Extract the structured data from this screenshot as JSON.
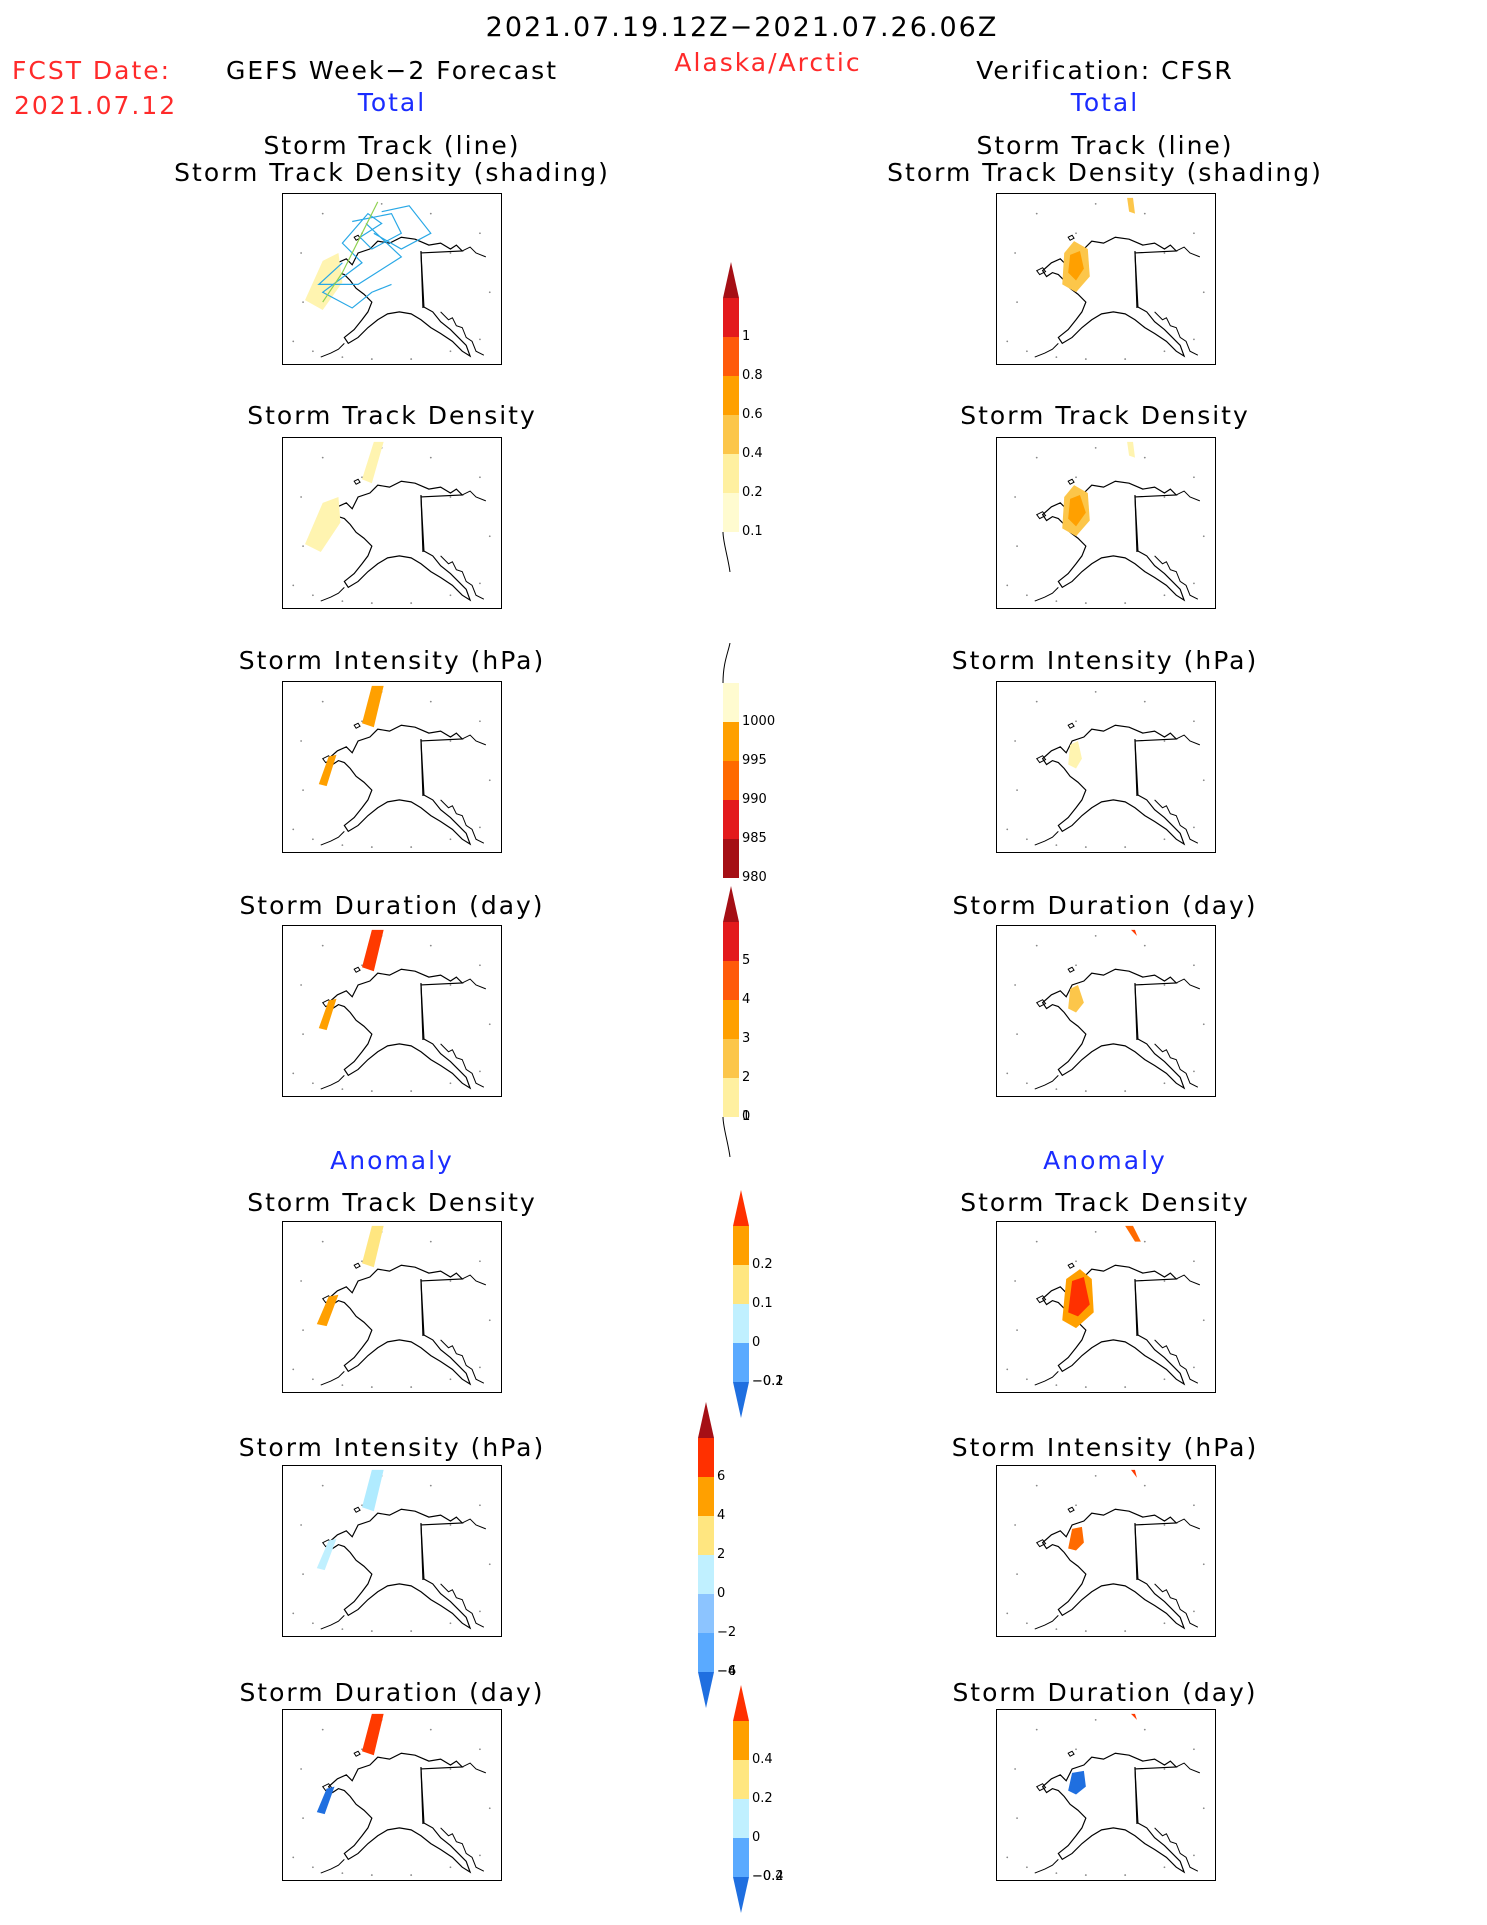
{
  "header": {
    "date_range": "2021.07.19.12Z−2021.07.26.06Z",
    "region": "Alaska/Arctic",
    "fcst_label": "FCST Date:",
    "fcst_date": "2021.07.12",
    "left_title": "GEFS Week−2 Forecast",
    "right_title": "Verification: CFSR"
  },
  "sections": {
    "total": "Total",
    "anomaly": "Anomaly"
  },
  "panel_titles": {
    "track_line": "Storm Track (line)",
    "track_shading": "Storm Track Density (shading)",
    "density": "Storm Track Density",
    "intensity": "Storm Intensity (hPa)",
    "duration": "Storm Duration (day)"
  },
  "colorbars": {
    "density_total": {
      "labels": [
        "1",
        "0.8",
        "0.6",
        "0.4",
        "0.2",
        "0.1"
      ],
      "colors": [
        "#a50f15",
        "#e31a1c",
        "#ff5a0a",
        "#ffa000",
        "#fcc64a",
        "#fff0a0",
        "#fffbd0"
      ]
    },
    "intensity_total": {
      "labels": [
        "1000",
        "995",
        "990",
        "985",
        "980"
      ],
      "colors": [
        "#fffbd0",
        "#ffa000",
        "#ff6a00",
        "#e31a1c",
        "#a50f15"
      ]
    },
    "duration_total": {
      "labels": [
        "5",
        "4",
        "3",
        "2",
        "1",
        "0"
      ],
      "colors": [
        "#a50f15",
        "#e31a1c",
        "#ff5a0a",
        "#ffa000",
        "#fcc64a",
        "#fff0a0"
      ]
    },
    "density_anom": {
      "labels": [
        "0.2",
        "0.1",
        "0",
        "−0.1",
        "−0.2"
      ],
      "colors": [
        "#ff3000",
        "#ffa000",
        "#ffe680",
        "#c0f0ff",
        "#5aaaff",
        "#1f6fe0"
      ]
    },
    "intensity_anom": {
      "labels": [
        "6",
        "4",
        "2",
        "0",
        "−2",
        "−4",
        "−6"
      ],
      "colors": [
        "#a50f15",
        "#ff3000",
        "#ffa000",
        "#ffe680",
        "#c0f0ff",
        "#8cc4ff",
        "#5aaaff",
        "#1f6fe0"
      ]
    },
    "duration_anom": {
      "labels": [
        "0.4",
        "0.2",
        "0",
        "−0.2",
        "−0.4"
      ],
      "colors": [
        "#ff3000",
        "#ffa000",
        "#ffe680",
        "#c0f0ff",
        "#5aaaff",
        "#1f6fe0"
      ]
    }
  }
}
